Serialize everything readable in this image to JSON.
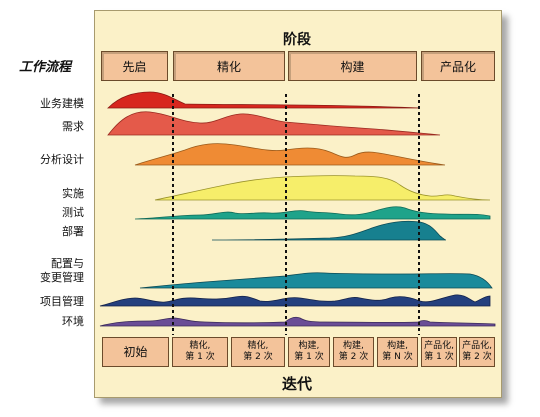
{
  "phases_title": "阶段",
  "iterations_title": "迭代",
  "workflows_heading": "工作流程",
  "phases": [
    "先启",
    "精化",
    "构建",
    "产品化"
  ],
  "iterations": [
    "初始",
    "精化,\n第 1 次",
    "精化,\n第 2 次",
    "构建,\n第 1 次",
    "构建,\n第 2 次",
    "构建,\n第 N 次",
    "产品化,\n第 1 次",
    "产品化,\n第 2 次"
  ],
  "workflows": [
    {
      "label": "业务建模",
      "color": "#d7261e"
    },
    {
      "label": "需求",
      "color": "#e45a4a"
    },
    {
      "label": "分析设计",
      "color": "#ef8b34"
    },
    {
      "label": "实施",
      "color": "#f6ee6a"
    },
    {
      "label": "测试",
      "color": "#1fa38a"
    },
    {
      "label": "部署",
      "color": "#17808f"
    },
    {
      "label": "配置与\n变更管理",
      "color": "#1a8a9b"
    },
    {
      "label": "项目管理",
      "color": "#24407e"
    },
    {
      "label": "环境",
      "color": "#6a4d96"
    }
  ]
}
